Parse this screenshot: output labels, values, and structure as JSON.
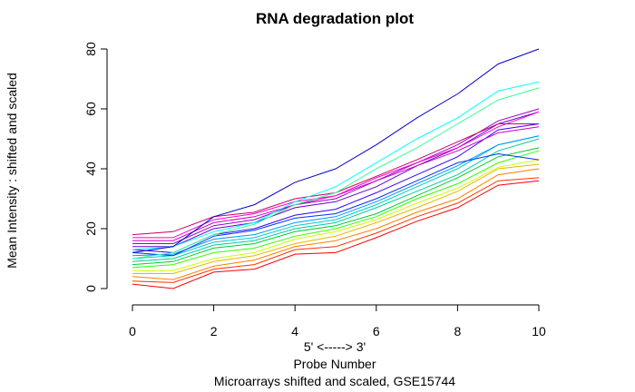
{
  "chart_data": {
    "type": "line",
    "title": "RNA degradation plot",
    "xlabel_direction": "5' <-----> 3'",
    "xlabel": "Probe Number",
    "subtitle": "Microarrays shifted and scaled, GSE15744",
    "ylabel": "Mean Intensity : shifted and scaled",
    "xlim": [
      0,
      10
    ],
    "ylim": [
      0,
      80
    ],
    "x_ticks": [
      0,
      2,
      4,
      6,
      8,
      10
    ],
    "y_ticks": [
      0,
      20,
      40,
      60,
      80
    ],
    "grid": false,
    "x": [
      0,
      1,
      2,
      3,
      4,
      5,
      6,
      7,
      8,
      9,
      10
    ],
    "series": [
      {
        "color": "#ff0000",
        "values": [
          1.5,
          0,
          5.5,
          6.5,
          11.5,
          12,
          17,
          22.5,
          27,
          34.5,
          36
        ]
      },
      {
        "color": "#ff3300",
        "values": [
          2.5,
          2,
          6.5,
          8,
          13,
          14,
          18.5,
          24,
          28.5,
          36,
          37
        ]
      },
      {
        "color": "#ff8000",
        "values": [
          4,
          3,
          7.5,
          9.5,
          14,
          16,
          20,
          25.5,
          30,
          38,
          40
        ]
      },
      {
        "color": "#e6b800",
        "values": [
          5,
          5,
          9,
          11,
          15,
          17.5,
          22,
          27,
          32.5,
          40,
          41.5
        ]
      },
      {
        "color": "#ccff00",
        "values": [
          6,
          6,
          10,
          12,
          16.5,
          19,
          23,
          28.5,
          33.5,
          40.5,
          43
        ]
      },
      {
        "color": "#33ff00",
        "values": [
          7,
          8,
          12,
          13.5,
          17.5,
          20,
          24,
          30,
          35,
          42,
          46
        ]
      },
      {
        "color": "#00cc33",
        "values": [
          8,
          9,
          13.5,
          15,
          19,
          21,
          25,
          31,
          37,
          44,
          47
        ]
      },
      {
        "color": "#00cc99",
        "values": [
          9,
          10,
          14.5,
          16,
          20,
          22,
          27,
          32.5,
          38,
          46,
          50
        ]
      },
      {
        "color": "#00cccc",
        "values": [
          10,
          11,
          15.5,
          17,
          21,
          23,
          28,
          34,
          40,
          48,
          51
        ]
      },
      {
        "color": "#0099ff",
        "values": [
          11,
          11.5,
          16.5,
          18,
          22,
          24,
          29,
          35,
          41,
          48,
          51
        ]
      },
      {
        "color": "#0033ff",
        "values": [
          12,
          11,
          17.5,
          19.5,
          23.5,
          25,
          30,
          36,
          42,
          45,
          43
        ]
      },
      {
        "color": "#3300ff",
        "values": [
          13,
          12,
          18,
          20,
          24.5,
          26.5,
          32,
          38,
          44,
          53,
          55
        ]
      },
      {
        "color": "#6600cc",
        "values": [
          14,
          14,
          20,
          22,
          27,
          29,
          34,
          41,
          47,
          55,
          59
        ]
      },
      {
        "color": "#9900cc",
        "values": [
          15,
          15,
          21,
          23,
          28,
          30,
          36,
          42,
          48,
          56,
          60
        ]
      },
      {
        "color": "#cc00cc",
        "values": [
          16,
          16,
          22,
          24,
          28,
          31,
          36,
          41,
          46,
          52,
          54
        ]
      },
      {
        "color": "#ff00cc",
        "values": [
          17,
          17,
          23,
          25,
          29,
          31,
          37,
          42,
          47,
          54,
          59
        ]
      },
      {
        "color": "#cc0066",
        "values": [
          18,
          19,
          24,
          25.5,
          30,
          32,
          37.5,
          43,
          49,
          55,
          55
        ]
      },
      {
        "color": "#33ff99",
        "values": [
          10,
          12,
          18,
          21.5,
          28,
          32,
          40,
          47,
          55,
          63,
          67
        ]
      },
      {
        "color": "#00ffff",
        "values": [
          13,
          14,
          19,
          22,
          29,
          34,
          42,
          50,
          57,
          66,
          69
        ]
      },
      {
        "color": "#0000cc",
        "values": [
          12,
          14,
          24,
          28,
          35.5,
          40,
          48,
          57,
          65,
          75,
          80
        ]
      }
    ]
  }
}
